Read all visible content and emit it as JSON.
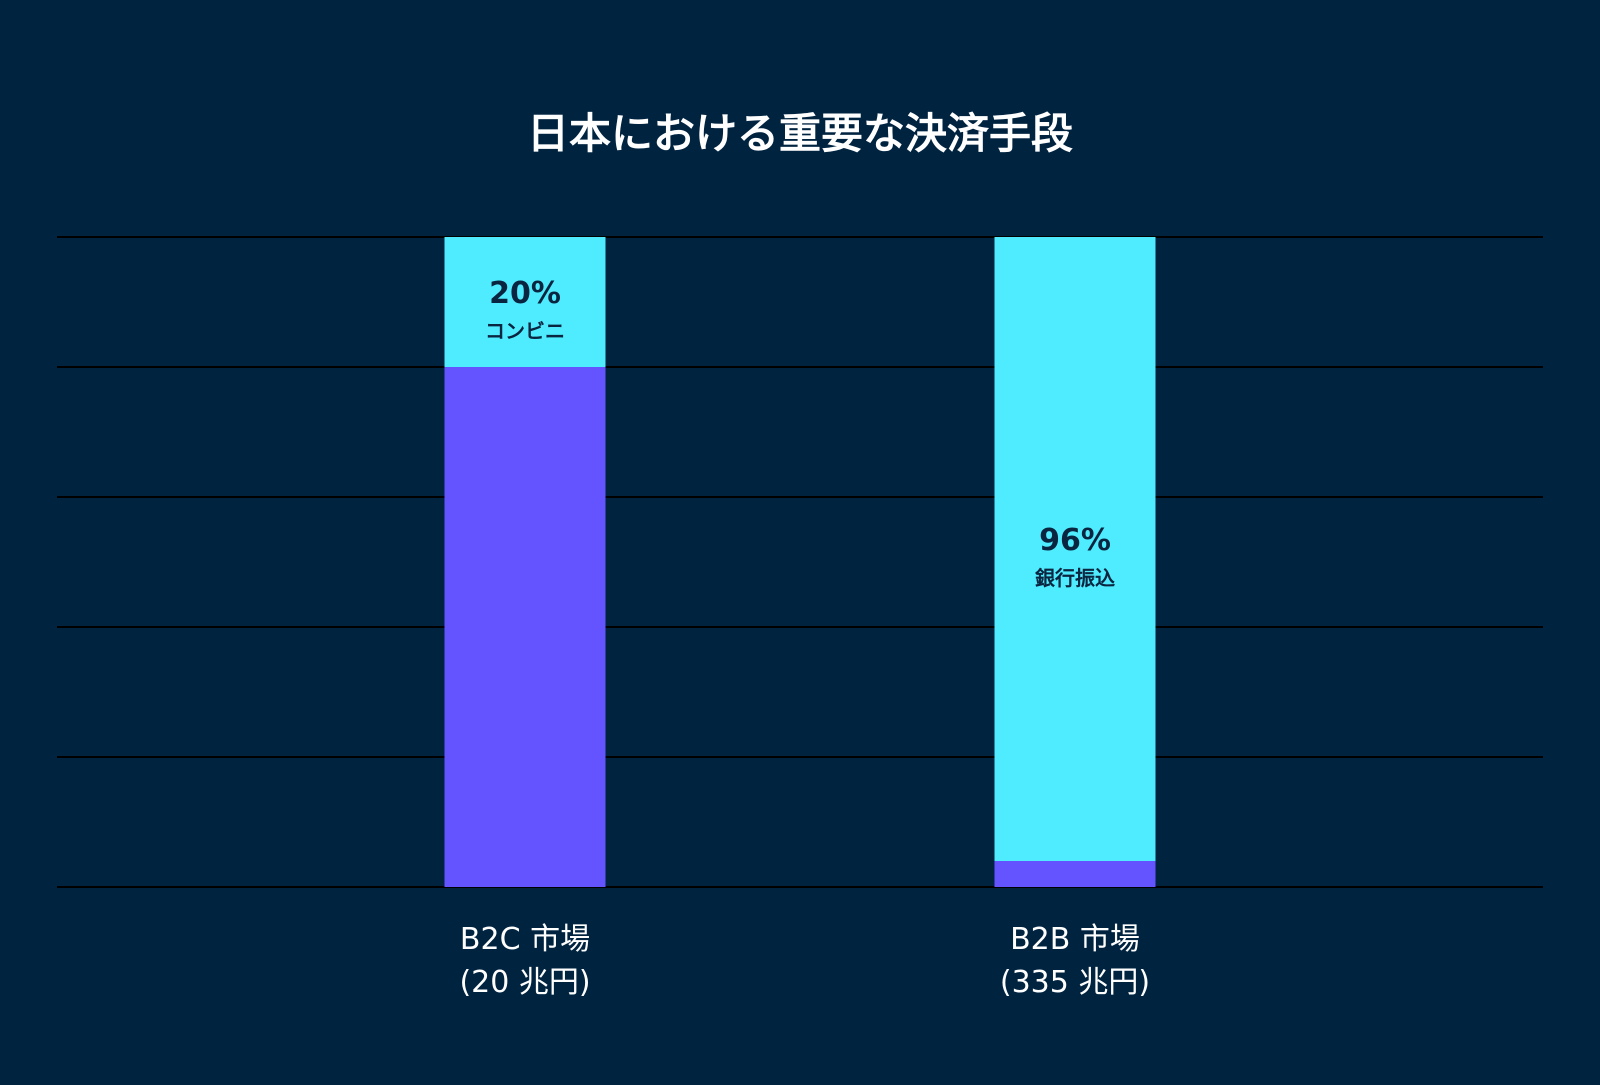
{
  "chart_data": {
    "type": "bar",
    "stacked": true,
    "title": "日本における重要な決済手段",
    "categories": [
      {
        "line1": "B2C 市場",
        "line2": "(20 兆円)"
      },
      {
        "line1": "B2B 市場",
        "line2": "(335 兆円)"
      }
    ],
    "series": [
      {
        "values": [
          80,
          4
        ]
      },
      {
        "values": [
          20,
          96
        ]
      }
    ],
    "data_labels": [
      {
        "value": "20%",
        "label": "コンビニ"
      },
      {
        "value": "96%",
        "label": "銀行振込"
      }
    ],
    "ylim": [
      0,
      100
    ],
    "grid": true,
    "gridline_count": 6
  },
  "colors": {
    "background": "#002340",
    "highlight": "#4FEBFE",
    "other": "#6454FF",
    "gridline": "#000000",
    "text_light": "#FFFFFF",
    "text_dark": "#0A2540"
  }
}
